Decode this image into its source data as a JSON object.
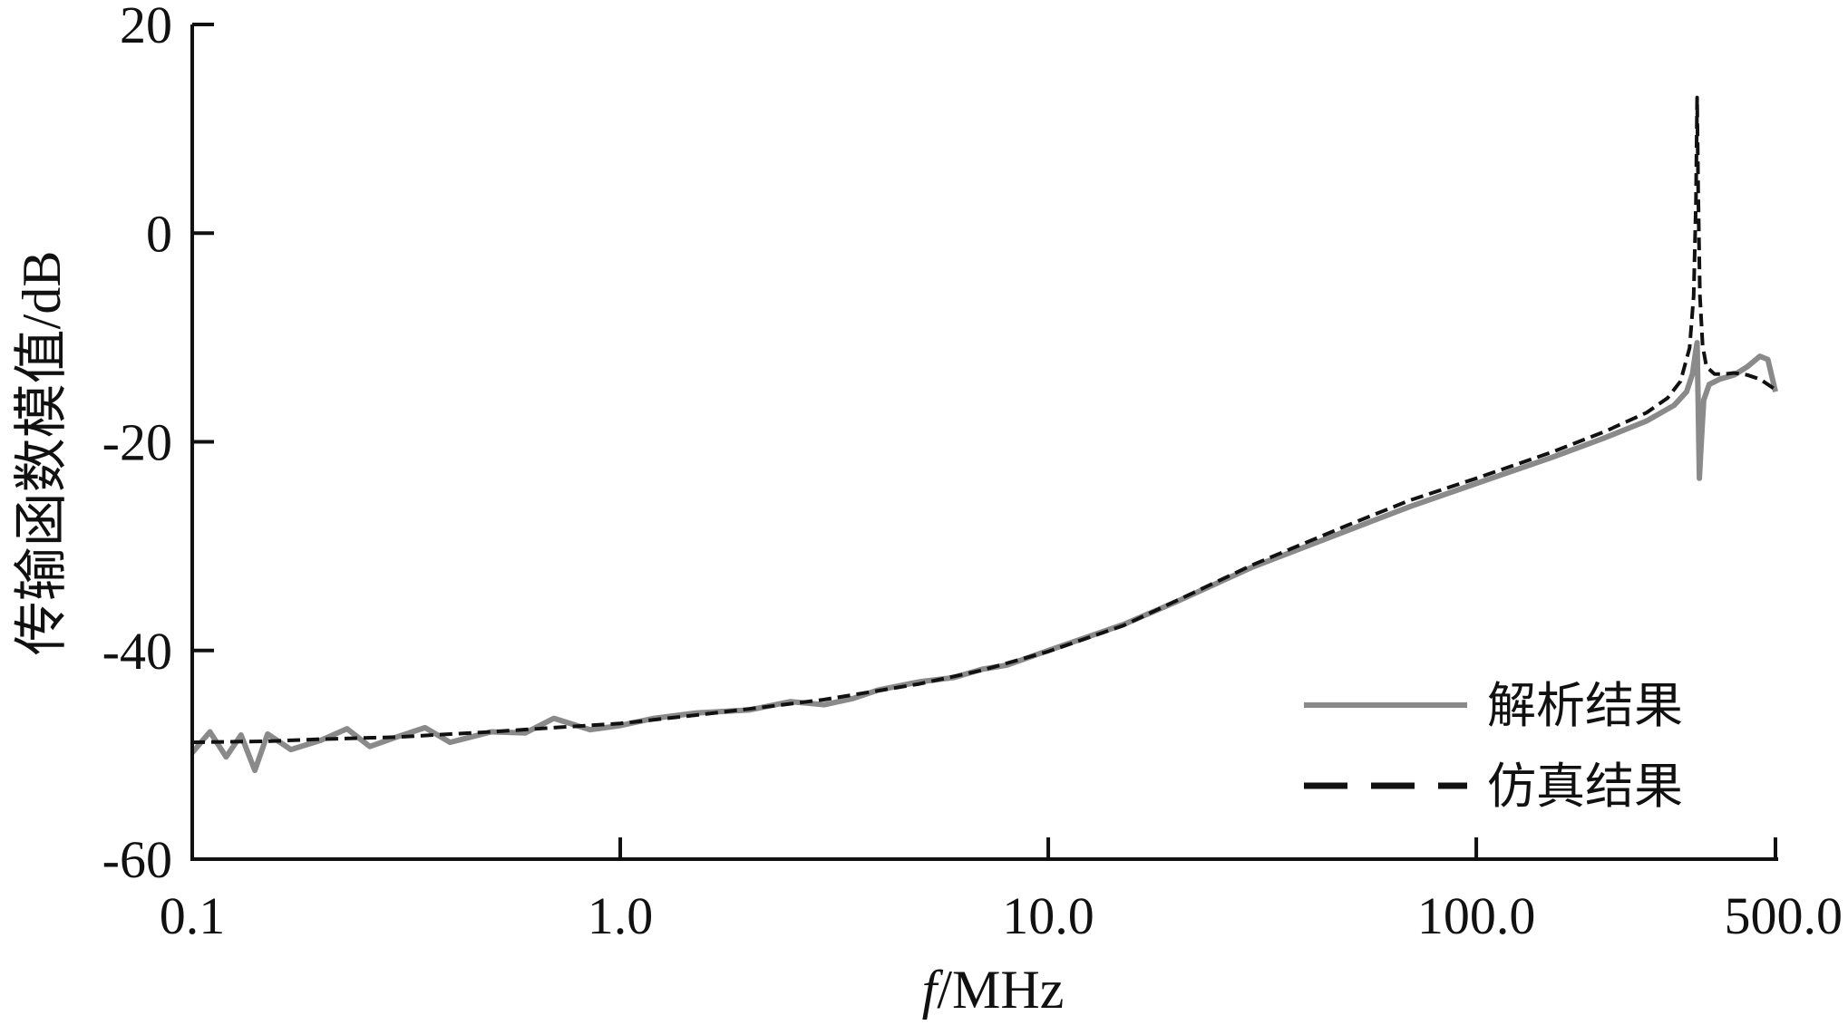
{
  "chart_data": {
    "type": "line",
    "xscale": "log",
    "xlim": [
      0.1,
      500.0
    ],
    "ylim": [
      -60,
      20
    ],
    "xticks": [
      0.1,
      1.0,
      10.0,
      100.0,
      500.0
    ],
    "xtick_labels": [
      "0.1",
      "1.0",
      "10.0",
      "100.0",
      "500.0"
    ],
    "yticks": [
      20,
      0,
      -20,
      -40,
      -60
    ],
    "ytick_labels": [
      "20",
      "0",
      "-20",
      "-40",
      "-60"
    ],
    "xlabel_italic": "f",
    "xlabel_rest": "/MHz",
    "ylabel": "传输函数模值/dB",
    "legend_position": "bottom-right",
    "series": [
      {
        "name": "解析结果",
        "color": "#8a8a8a",
        "style": "solid",
        "x": [
          0.1,
          0.11,
          0.12,
          0.13,
          0.14,
          0.15,
          0.17,
          0.2,
          0.23,
          0.26,
          0.3,
          0.35,
          0.4,
          0.5,
          0.6,
          0.7,
          0.85,
          1.0,
          1.2,
          1.5,
          2.0,
          2.5,
          3.0,
          3.5,
          4.0,
          5.0,
          6.0,
          7.0,
          8.0,
          10.0,
          15.0,
          20.0,
          30.0,
          50.0,
          70.0,
          100.0,
          150.0,
          200.0,
          250.0,
          290.0,
          310.0,
          320.0,
          325.0,
          328.0,
          330.0,
          332.0,
          335.0,
          340.0,
          350.0,
          370.0,
          400.0,
          430.0,
          460.0,
          480.0,
          500.0
        ],
        "y": [
          -49.8,
          -47.8,
          -50.2,
          -48.1,
          -51.5,
          -48.0,
          -49.5,
          -48.6,
          -47.5,
          -49.2,
          -48.3,
          -47.4,
          -48.8,
          -47.8,
          -47.9,
          -46.5,
          -47.6,
          -47.2,
          -46.5,
          -46.0,
          -45.7,
          -44.9,
          -45.2,
          -44.6,
          -43.8,
          -43.0,
          -42.6,
          -41.8,
          -41.4,
          -40.0,
          -37.5,
          -35.3,
          -32.0,
          -28.5,
          -26.2,
          -24.0,
          -21.5,
          -19.6,
          -18.0,
          -16.5,
          -15.2,
          -13.5,
          -11.5,
          -10.5,
          -16.5,
          -23.5,
          -20.5,
          -16.0,
          -14.5,
          -14.0,
          -13.6,
          -12.8,
          -11.8,
          -12.1,
          -15.2
        ]
      },
      {
        "name": "仿真结果",
        "color": "#111111",
        "style": "dashed",
        "x": [
          0.1,
          0.15,
          0.2,
          0.3,
          0.5,
          0.7,
          1.0,
          1.5,
          2.0,
          3.0,
          5.0,
          7.0,
          10.0,
          15.0,
          20.0,
          30.0,
          50.0,
          70.0,
          100.0,
          150.0,
          200.0,
          250.0,
          280.0,
          300.0,
          315.0,
          322.0,
          326.0,
          328.0,
          330.0,
          333.0,
          338.0,
          345.0,
          360.0,
          380.0,
          400.0,
          430.0,
          460.0,
          480.0,
          500.0
        ],
        "y": [
          -48.8,
          -48.7,
          -48.5,
          -48.3,
          -47.8,
          -47.4,
          -47.0,
          -46.2,
          -45.6,
          -44.7,
          -43.2,
          -41.9,
          -40.1,
          -37.6,
          -35.2,
          -31.8,
          -28.0,
          -25.6,
          -23.5,
          -21.0,
          -19.0,
          -17.2,
          -15.8,
          -14.2,
          -11.0,
          -6.0,
          3.0,
          13.0,
          4.0,
          -6.0,
          -10.8,
          -12.8,
          -13.5,
          -13.5,
          -13.4,
          -13.6,
          -14.0,
          -14.5,
          -15.0
        ]
      }
    ]
  }
}
